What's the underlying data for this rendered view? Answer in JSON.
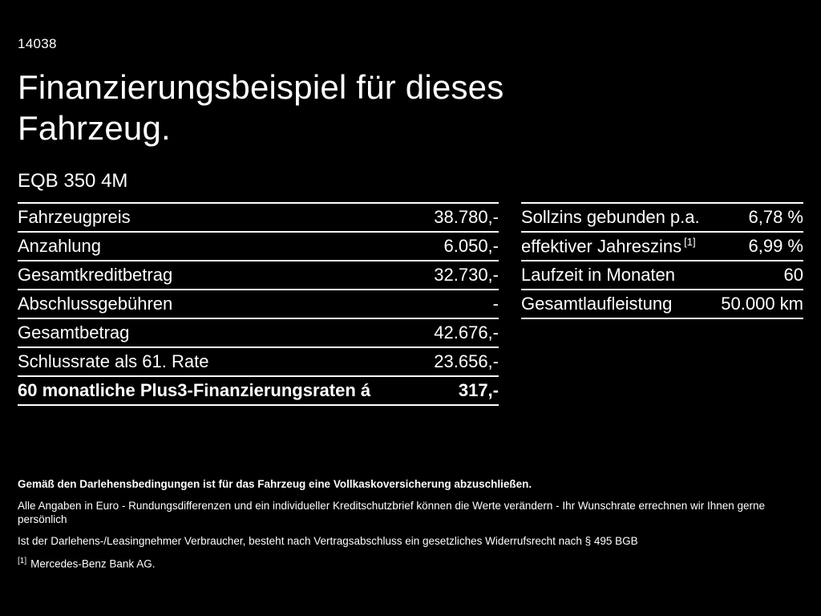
{
  "page": {
    "doc_id": "14038",
    "title": "Finanzierungsbeispiel für dieses Fahrzeug.",
    "model": "EQB 350 4M"
  },
  "left_table": {
    "rows": [
      {
        "label": "Fahrzeugpreis",
        "value": "38.780,-"
      },
      {
        "label": "Anzahlung",
        "value": "6.050,-"
      },
      {
        "label": "Gesamtkreditbetrag",
        "value": "32.730,-"
      },
      {
        "label": "Abschlussgebühren",
        "value": "-"
      },
      {
        "label": "Gesamtbetrag",
        "value": "42.676,-"
      },
      {
        "label": "Schlussrate als 61. Rate",
        "value": "23.656,-"
      },
      {
        "label": "60 monatliche Plus3-Finanzierungsraten á",
        "value": "317,-"
      }
    ]
  },
  "right_table": {
    "rows": [
      {
        "label": "Sollzins gebunden p.a.",
        "value": "6,78 %"
      },
      {
        "label": "effektiver Jahreszins",
        "sup": "[1]",
        "value": "6,99 %"
      },
      {
        "label": "Laufzeit in Monaten",
        "value": "60"
      },
      {
        "label": "Gesamtlaufleistung",
        "value": "50.000 km"
      }
    ]
  },
  "footer": {
    "line1": "Gemäß den Darlehensbedingungen ist für das Fahrzeug eine Vollkaskoversicherung abzuschließen.",
    "line2": "Alle Angaben in Euro - Rundungsdifferenzen und ein individueller Kreditschutzbrief können die Werte verändern - Ihr Wunschrate errechnen wir Ihnen gerne persönlich",
    "line3": "Ist der Darlehens-/Leasingnehmer Verbraucher, besteht nach Vertragsabschluss ein gesetzliches Widerrufsrecht nach § 495 BGB",
    "footnote_marker": "[1]",
    "footnote_text": "Mercedes-Benz Bank AG."
  }
}
